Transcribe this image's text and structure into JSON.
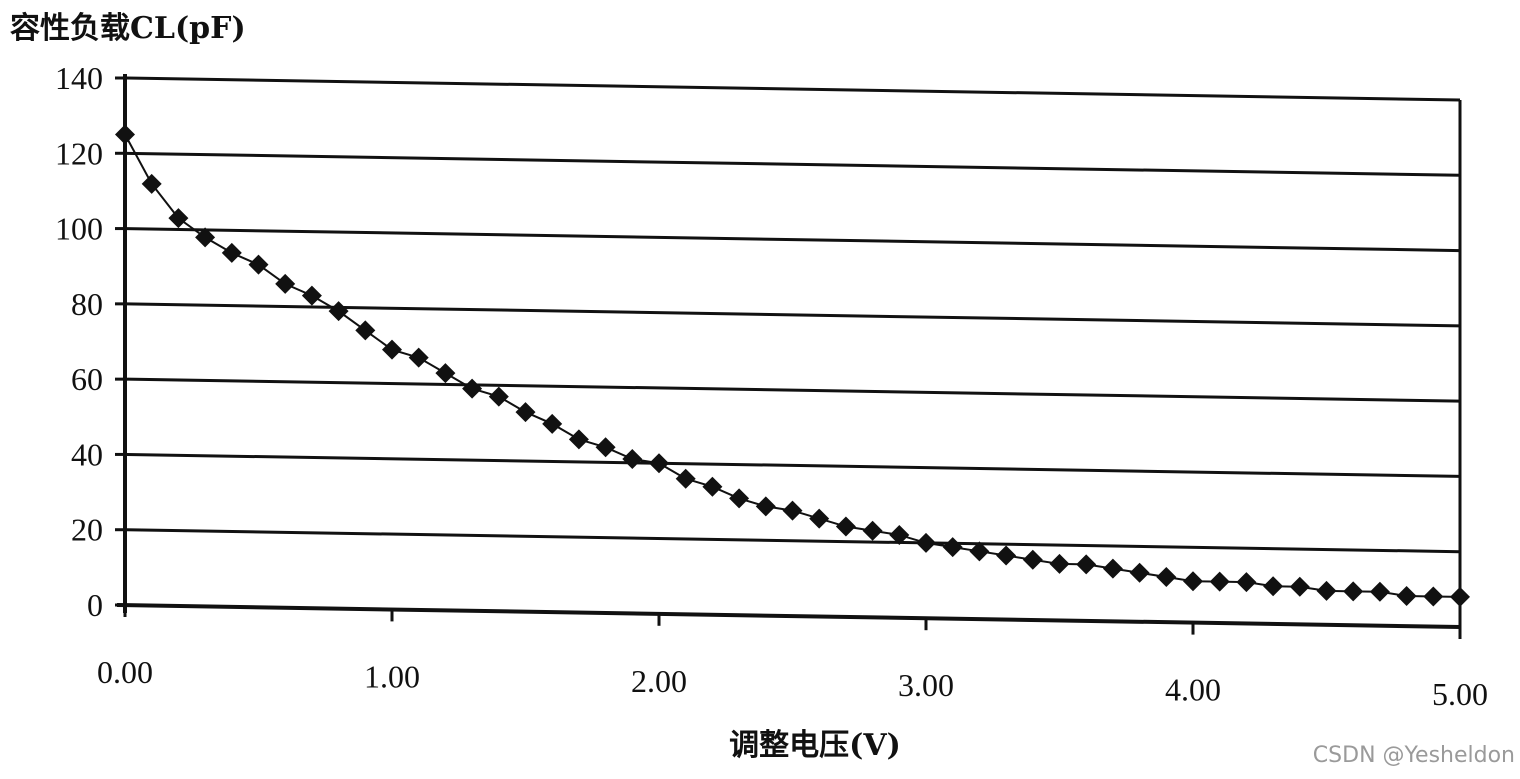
{
  "chart_data": {
    "type": "line",
    "title": "",
    "ylabel": "容性负载CL(pF)",
    "xlabel": "调整电压(V)",
    "xlim": [
      0,
      5
    ],
    "ylim": [
      0,
      140
    ],
    "x_ticks": [
      "0.00",
      "1.00",
      "2.00",
      "3.00",
      "4.00",
      "5.00"
    ],
    "y_ticks": [
      "0",
      "20",
      "40",
      "60",
      "80",
      "100",
      "120",
      "140"
    ],
    "grid": true,
    "legend": "none",
    "marker": "diamond",
    "color": "#111111",
    "series": [
      {
        "x": [
          0.0,
          0.1,
          0.2,
          0.3,
          0.4,
          0.5,
          0.6,
          0.7,
          0.8,
          0.9,
          1.0,
          1.1,
          1.2,
          1.3,
          1.4,
          1.5,
          1.6,
          1.7,
          1.8,
          1.9,
          2.0,
          2.1,
          2.2,
          2.3,
          2.4,
          2.5,
          2.6,
          2.7,
          2.8,
          2.9,
          3.0,
          3.1,
          3.2,
          3.3,
          3.4,
          3.5,
          3.6,
          3.7,
          3.8,
          3.9,
          4.0,
          4.1,
          4.2,
          4.3,
          4.4,
          4.5,
          4.6,
          4.7,
          4.8,
          4.9,
          5.0
        ],
        "values": [
          125,
          112,
          103,
          98,
          94,
          91,
          86,
          83,
          79,
          74,
          69,
          67,
          63,
          59,
          57,
          53,
          50,
          46,
          44,
          41,
          40,
          36,
          34,
          31,
          29,
          28,
          26,
          24,
          23,
          22,
          20,
          19,
          18,
          17,
          16,
          15,
          15,
          14,
          13,
          12,
          11,
          11,
          11,
          10,
          10,
          9,
          9,
          9,
          8,
          8,
          8
        ]
      }
    ]
  },
  "watermark": "CSDN @Yesheldon"
}
